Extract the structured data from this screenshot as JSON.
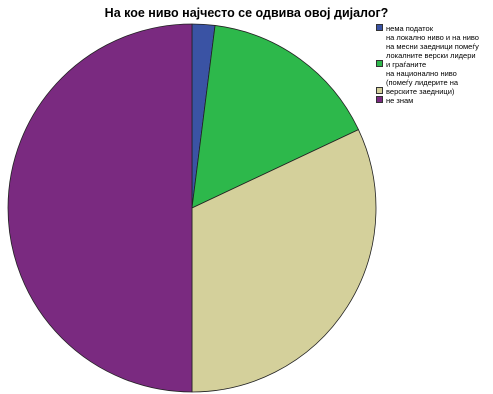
{
  "chart_data": {
    "type": "pie",
    "title": "На кое ниво најчесто се одвива овој дијалог?",
    "categories": [
      "нема податок",
      "на локално ниво и на ниво\nна месни заедници помеѓу\nлокалните верски лидери\nи граѓаните",
      "на национално ниво\n(помеѓу лидерите на\nверските заедници)",
      "не знам"
    ],
    "values": [
      2,
      16,
      32,
      50
    ],
    "colors": [
      "#3a53a4",
      "#2db84b",
      "#d4d09b",
      "#7a2a80"
    ],
    "legend_position": "right",
    "start_angle_deg": 0,
    "direction": "clockwise"
  }
}
